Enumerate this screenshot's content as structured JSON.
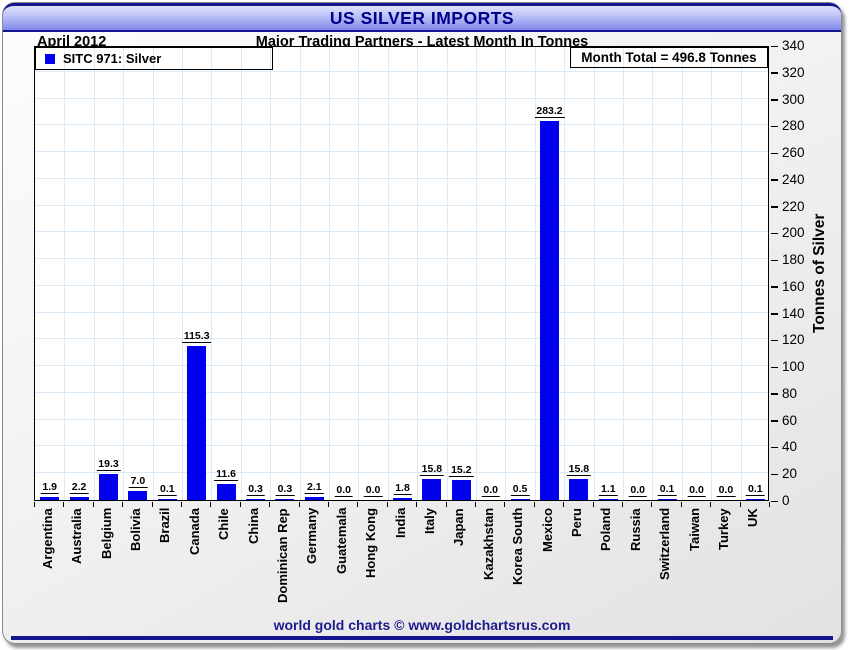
{
  "header": {
    "title": "US SILVER IMPORTS"
  },
  "subheader": {
    "date": "April 2012",
    "subtitle": "Major Trading Partners - Latest Month In Tonnes"
  },
  "legend": {
    "label": "SITC 971: Silver",
    "marker_color": "#0101ee"
  },
  "annotation": {
    "month_total": "Month Total = 496.8 Tonnes"
  },
  "footer": {
    "credit": "world gold charts © www.goldchartsrus.com"
  },
  "colors": {
    "bar": "#0101ee",
    "accent_navy": "#00008b",
    "grid": "#dce9f7"
  },
  "chart_data": {
    "type": "bar",
    "title": "US SILVER IMPORTS",
    "subtitle": "Major Trading Partners - Latest Month In Tonnes",
    "period": "April 2012",
    "series_name": "SITC 971: Silver",
    "month_total": 496.8,
    "categories": [
      "Argentina",
      "Australia",
      "Belgium",
      "Bolivia",
      "Brazil",
      "Canada",
      "Chile",
      "China",
      "Dominican Rep",
      "Germany",
      "Guatemala",
      "Hong Kong",
      "India",
      "Italy",
      "Japan",
      "Kazakhstan",
      "Korea South",
      "Mexico",
      "Peru",
      "Poland",
      "Russia",
      "Switzerland",
      "Taiwan",
      "Turkey",
      "UK"
    ],
    "values": [
      1.9,
      2.2,
      19.3,
      7.0,
      0.1,
      115.3,
      11.6,
      0.3,
      0.3,
      2.1,
      0.0,
      0.0,
      1.8,
      15.8,
      15.2,
      0.0,
      0.5,
      283.2,
      15.8,
      1.1,
      0.0,
      0.1,
      0.0,
      0.0,
      0.1
    ],
    "ylabel": "Tonnes of Silver",
    "ylim": [
      0,
      340
    ],
    "ytick_step": 20,
    "grid": true,
    "legend_position": "top-left",
    "yaxis_side": "right",
    "bar_color": "#0101ee"
  }
}
